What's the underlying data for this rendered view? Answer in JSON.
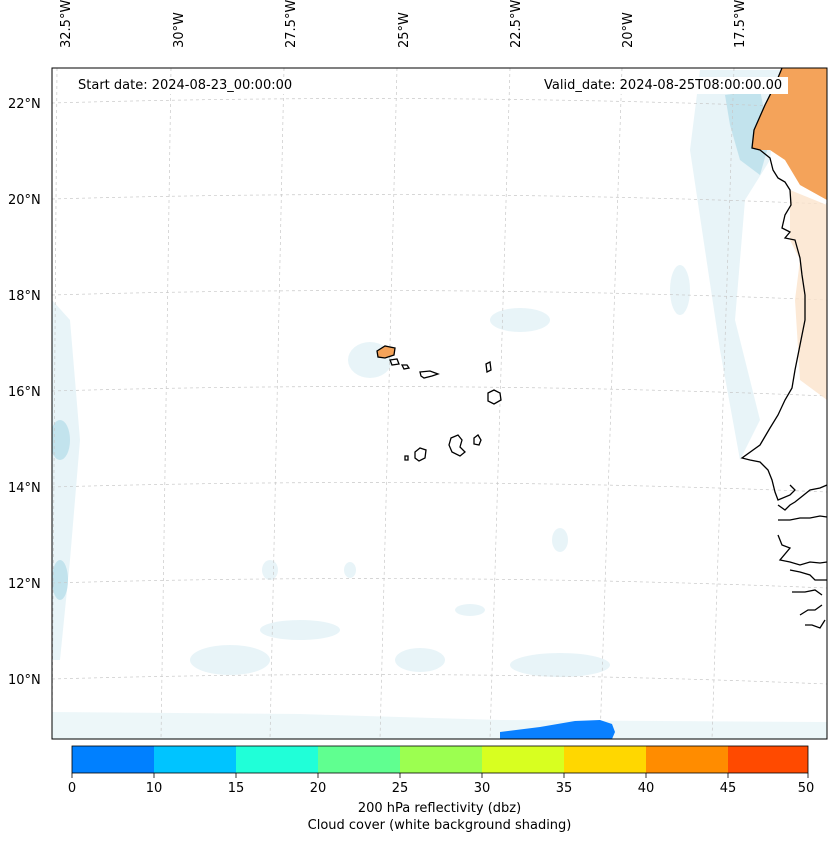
{
  "annotations": {
    "start_date": "Start date: 2024-08-23_00:00:00",
    "valid_date": "Valid_date: 2024-08-25T08:00:00.00"
  },
  "map": {
    "lon_labels": [
      "32.5°W",
      "30°W",
      "27.5°W",
      "25°W",
      "22.5°W",
      "20°W",
      "17.5°W"
    ],
    "lat_labels": [
      "22°N",
      "20°N",
      "18°N",
      "16°N",
      "14°N",
      "12°N",
      "10°N"
    ]
  },
  "colorbar": {
    "ticks": [
      "0",
      "10",
      "15",
      "20",
      "25",
      "30",
      "35",
      "40",
      "45",
      "50"
    ],
    "colors": [
      "#0080ff",
      "#00c4ff",
      "#20ffd8",
      "#60ff90",
      "#9cff50",
      "#d8ff20",
      "#ffd700",
      "#ff8c00",
      "#ff4a00"
    ],
    "label": "200 hPa reflectivity (dbz)",
    "sublabel": "Cloud cover (white background shading)"
  }
}
